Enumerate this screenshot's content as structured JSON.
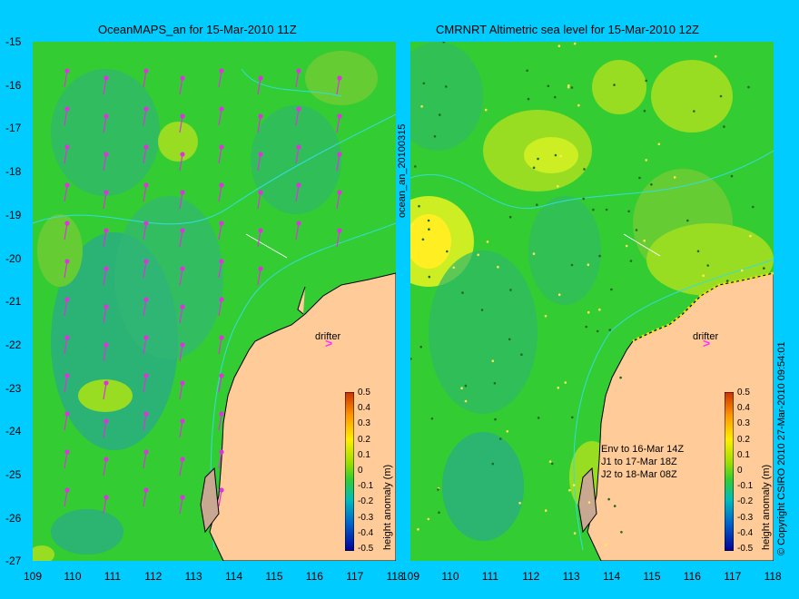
{
  "left_panel": {
    "title": "OceanMAPS_an for 15-Mar-2010 11Z",
    "drifter_label": "drifter",
    "drifter_marker": ">",
    "colorbar_label": "height anomaly (m)"
  },
  "right_panel": {
    "title": "CMRNRT Altimetric sea level  for 15-Mar-2010 12Z",
    "drifter_label": "drifter",
    "drifter_marker": ">",
    "colorbar_label": "height anomaly (m)",
    "legend_lines": [
      "Env to 16-Mar 14Z",
      "J1 to 17-Mar 18Z",
      "J2 to 18-Mar 08Z"
    ]
  },
  "side_label": "ocean_an_20100315",
  "copyright": "© Copyright CSIRO 2010   27-Mar-2010 09:54:01",
  "y_ticks": [
    "-15",
    "-16",
    "-17",
    "-18",
    "-19",
    "-20",
    "-21",
    "-22",
    "-23",
    "-24",
    "-25",
    "-26",
    "-27"
  ],
  "x_ticks_left": [
    "109",
    "110",
    "111",
    "112",
    "113",
    "114",
    "115",
    "116",
    "117",
    "118"
  ],
  "x_ticks_right": [
    "109",
    "110",
    "111",
    "112",
    "113",
    "114",
    "115",
    "116",
    "117",
    "118"
  ],
  "colorbar_ticks": [
    "0.5",
    "0.4",
    "0.3",
    "0.2",
    "0.1",
    "0",
    "-0.1",
    "-0.2",
    "-0.3",
    "-0.4",
    "-0.5"
  ],
  "colors": {
    "background": "#00ccff",
    "land": "#ffcc99",
    "ocean_base": "#33cc33",
    "arrows": "#dd33dd",
    "contour": "#33dddd"
  }
}
